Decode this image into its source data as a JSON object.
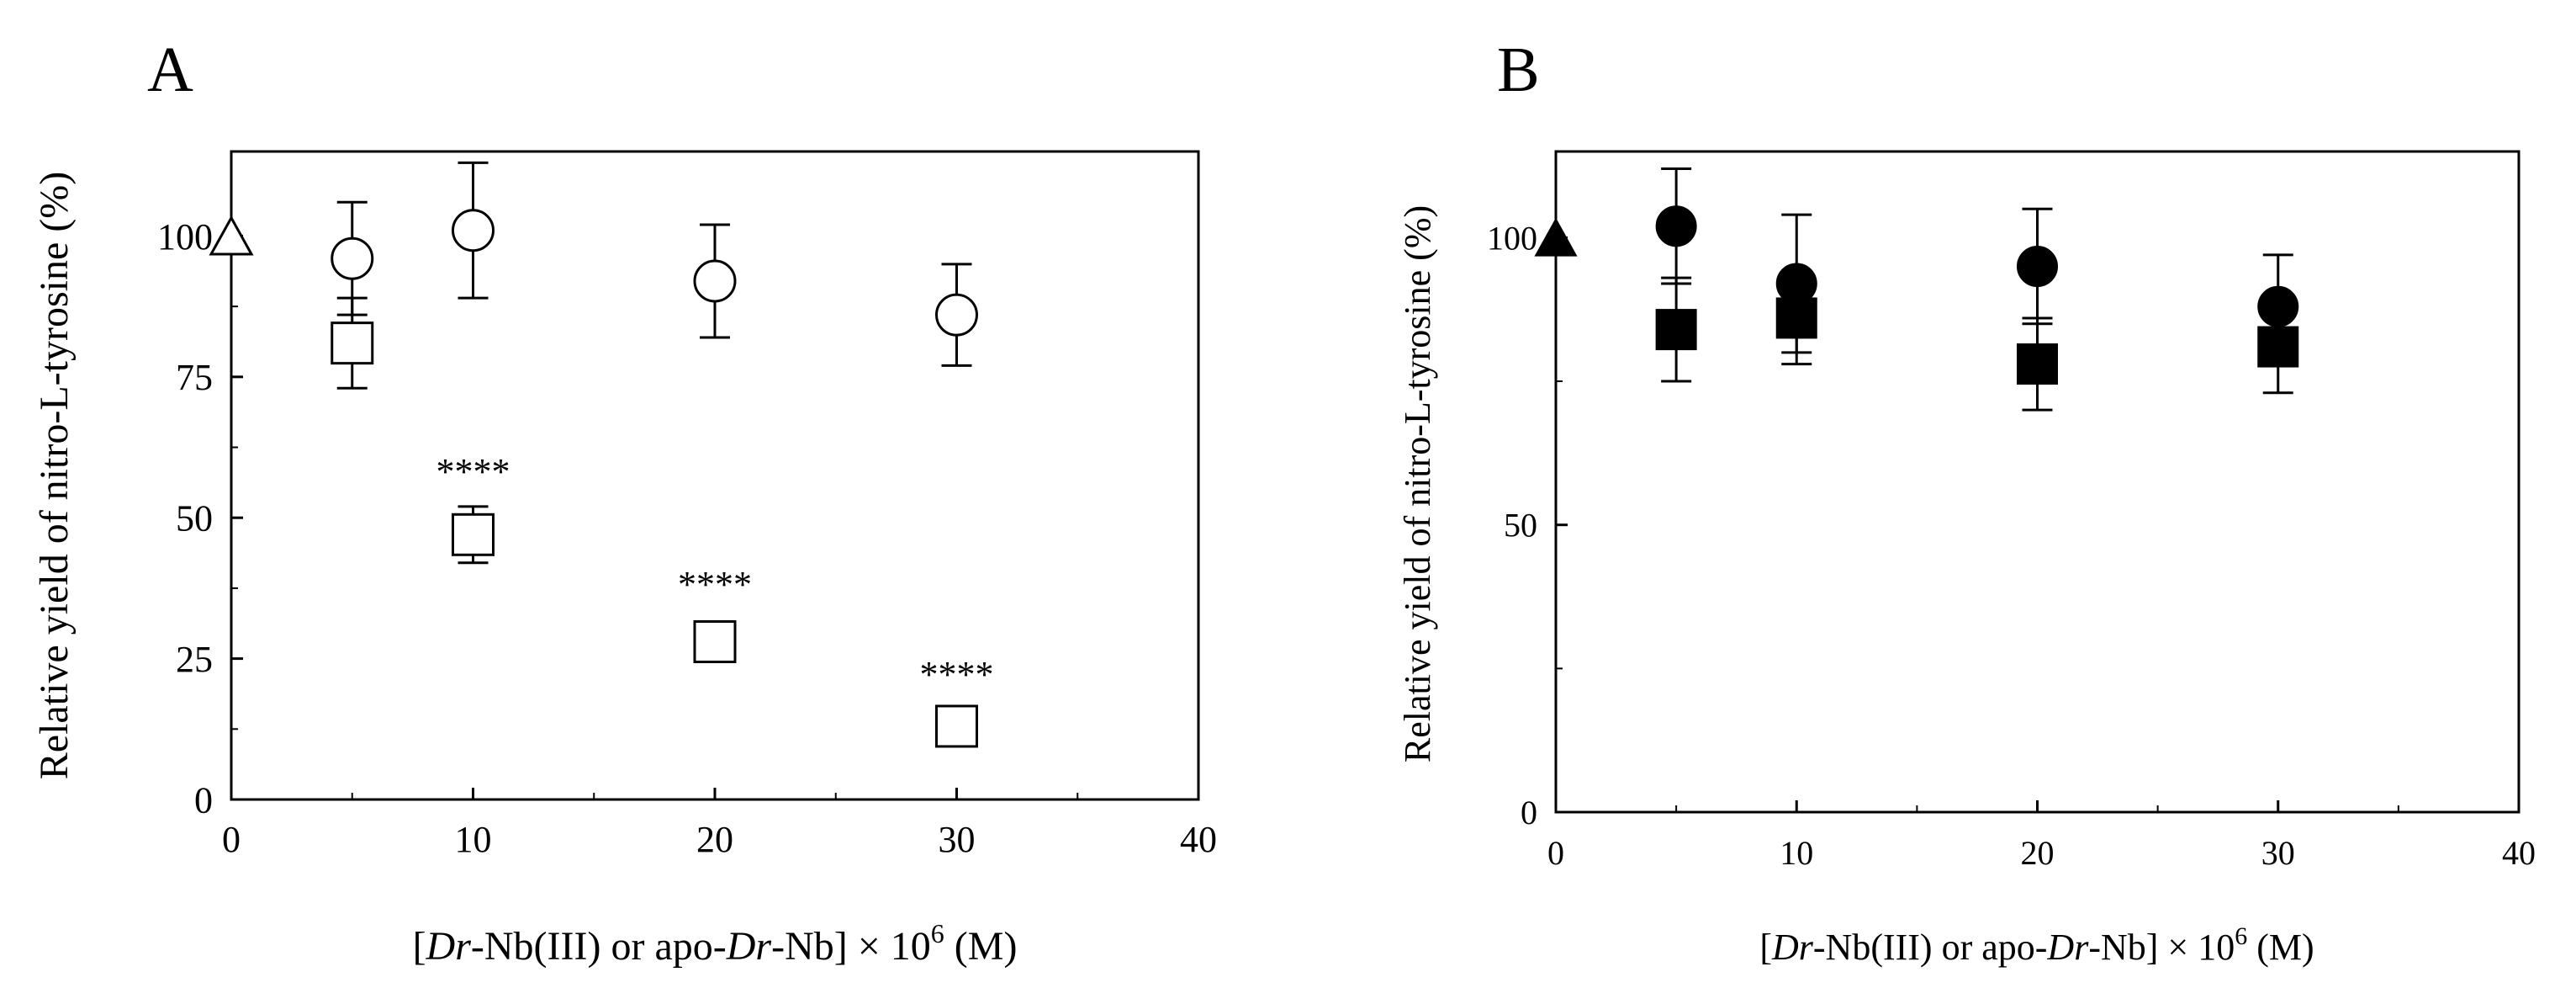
{
  "chart_data": [
    {
      "type": "scatter",
      "panel_label": "A",
      "ylabel": "Relative yield of nitro-L-tyrosine (%)",
      "xlabel_parts": [
        "[",
        "Dr",
        "-Nb(III) or apo-",
        "Dr",
        "-Nb] × 10",
        "6",
        " (M)"
      ],
      "xlim": [
        0,
        40
      ],
      "ylim": [
        0,
        115
      ],
      "x_ticks": [
        0,
        10,
        20,
        30,
        40
      ],
      "y_ticks": [
        0,
        25,
        50,
        75,
        100
      ],
      "grid": false,
      "series": [
        {
          "marker": "open-triangle",
          "points": [
            {
              "x": 0,
              "y": 100
            }
          ]
        },
        {
          "marker": "open-circle",
          "points": [
            {
              "x": 5,
              "y": 96,
              "err": 10
            },
            {
              "x": 10,
              "y": 101,
              "err": 12
            },
            {
              "x": 20,
              "y": 92,
              "err": 10
            },
            {
              "x": 30,
              "y": 86,
              "err": 9
            }
          ]
        },
        {
          "marker": "open-square",
          "points": [
            {
              "x": 5,
              "y": 81,
              "err": 8
            },
            {
              "x": 10,
              "y": 47,
              "err": 5
            },
            {
              "x": 20,
              "y": 28,
              "err": 0
            },
            {
              "x": 30,
              "y": 13,
              "err": 0
            }
          ]
        }
      ],
      "annotations": [
        {
          "x": 10,
          "y": 56,
          "text": "****"
        },
        {
          "x": 20,
          "y": 36,
          "text": "****"
        },
        {
          "x": 30,
          "y": 20,
          "text": "****"
        }
      ]
    },
    {
      "type": "scatter",
      "panel_label": "B",
      "ylabel": "Relative yield of nitro-L-tyrosine (%)",
      "xlabel_parts": [
        "[",
        "Dr",
        "-Nb(III) or apo-",
        "Dr",
        "-Nb] × 10",
        "6",
        " (M)"
      ],
      "xlim": [
        0,
        40
      ],
      "ylim": [
        0,
        115
      ],
      "x_ticks": [
        0,
        10,
        20,
        30,
        40
      ],
      "y_ticks": [
        0,
        50,
        100
      ],
      "grid": false,
      "series": [
        {
          "marker": "filled-triangle",
          "points": [
            {
              "x": 0,
              "y": 100
            }
          ]
        },
        {
          "marker": "filled-circle",
          "points": [
            {
              "x": 5,
              "y": 102,
              "err": 10
            },
            {
              "x": 10,
              "y": 92,
              "err": 12
            },
            {
              "x": 20,
              "y": 95,
              "err": 10
            },
            {
              "x": 30,
              "y": 88,
              "err": 9
            }
          ]
        },
        {
          "marker": "filled-square",
          "points": [
            {
              "x": 5,
              "y": 84,
              "err": 9
            },
            {
              "x": 10,
              "y": 86,
              "err": 8
            },
            {
              "x": 20,
              "y": 78,
              "err": 8
            },
            {
              "x": 30,
              "y": 81,
              "err": 8
            }
          ]
        }
      ],
      "annotations": []
    }
  ]
}
